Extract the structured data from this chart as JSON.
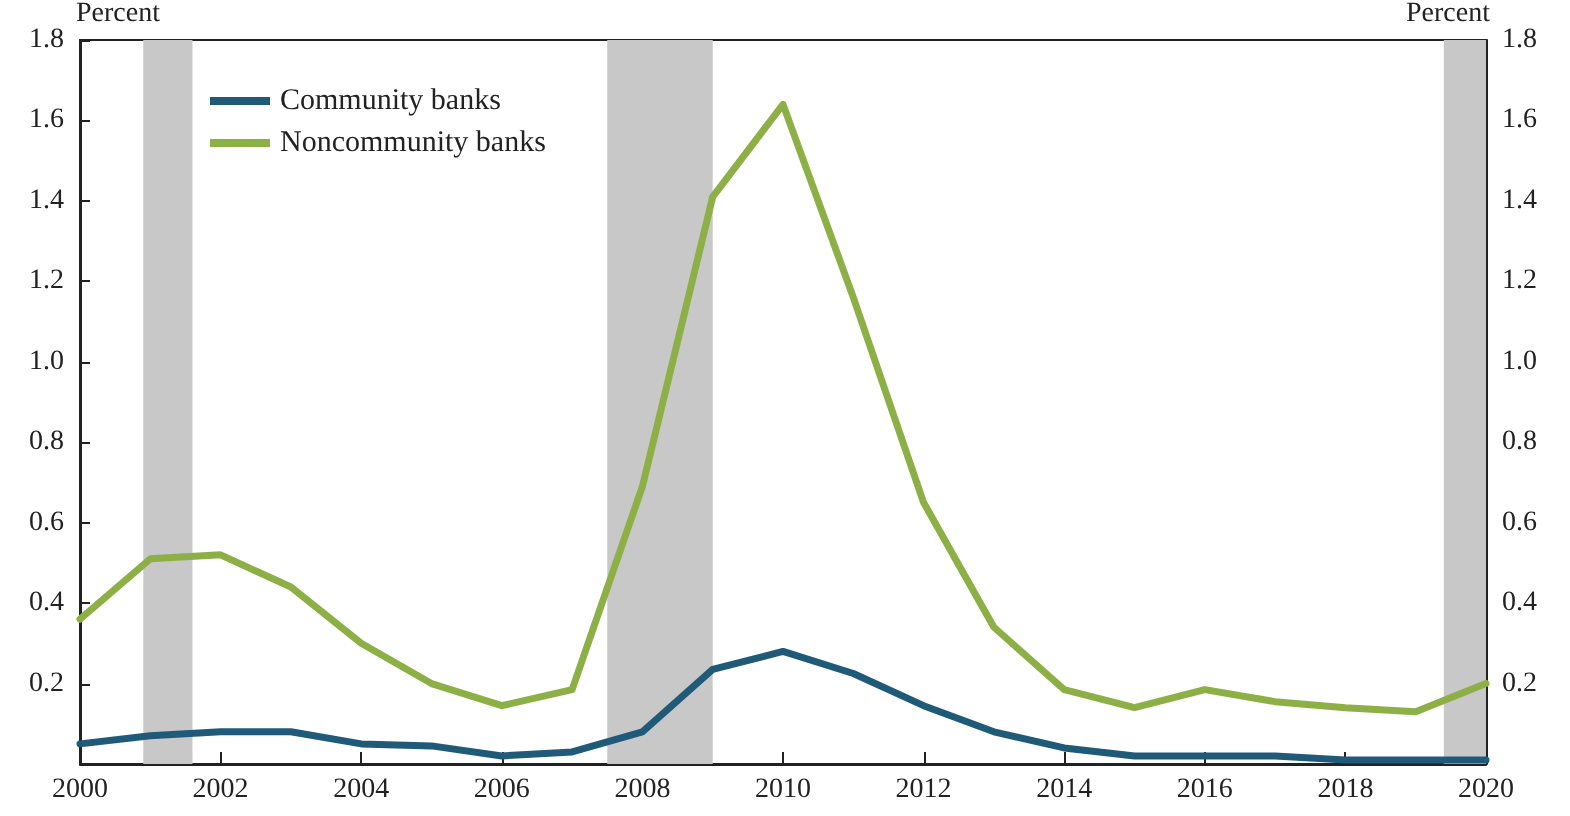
{
  "chart_data": {
    "type": "line",
    "ylabel": "Percent",
    "y2label": "Percent",
    "x": [
      2000,
      2001,
      2002,
      2003,
      2004,
      2005,
      2006,
      2007,
      2008,
      2009,
      2010,
      2011,
      2012,
      2013,
      2014,
      2015,
      2016,
      2017,
      2018,
      2019,
      2020
    ],
    "series": [
      {
        "name": "Community banks",
        "color": "#1f5a78",
        "values": [
          0.05,
          0.07,
          0.08,
          0.08,
          0.05,
          0.045,
          0.02,
          0.03,
          0.08,
          0.235,
          0.28,
          0.225,
          0.145,
          0.08,
          0.04,
          0.02,
          0.02,
          0.02,
          0.01,
          0.01,
          0.01
        ]
      },
      {
        "name": "Noncommunity banks",
        "color": "#8db046",
        "values": [
          0.36,
          0.51,
          0.52,
          0.44,
          0.3,
          0.2,
          0.145,
          0.185,
          0.69,
          1.41,
          1.64,
          1.16,
          0.65,
          0.34,
          0.185,
          0.14,
          0.185,
          0.155,
          0.14,
          0.13,
          0.2
        ]
      }
    ],
    "xlim": [
      2000,
      2020
    ],
    "xticks": [
      2000,
      2002,
      2004,
      2006,
      2008,
      2010,
      2012,
      2014,
      2016,
      2018,
      2020
    ],
    "ylim": [
      0,
      1.8
    ],
    "yticks": [
      0.2,
      0.4,
      0.6,
      0.8,
      {
        "value": 1,
        "label": "1.0"
      },
      1.2,
      1.4,
      1.6,
      1.8
    ],
    "y2lim": [
      0,
      1.8
    ],
    "y2ticks": [
      0.2,
      0.4,
      0.6,
      0.8,
      {
        "value": 1,
        "label": "1.0"
      },
      1.2,
      1.4,
      1.6,
      1.8
    ],
    "bands": [
      {
        "axis": "x",
        "from": 2000.9,
        "to": 2001.6,
        "color": "#c8c8c8"
      },
      {
        "axis": "x",
        "from": 2007.5,
        "to": 2009.0,
        "color": "#c8c8c8"
      },
      {
        "axis": "x",
        "from": 2019.4,
        "to": 2020,
        "color": "#c8c8c8"
      }
    ],
    "grid": false,
    "legend": "top left",
    "marker": "none",
    "line_style": "solid"
  }
}
